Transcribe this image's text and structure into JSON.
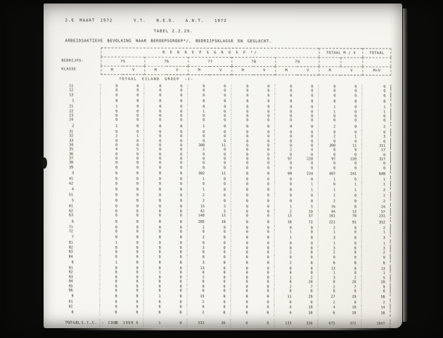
{
  "scan": {
    "header_line": "2.E MAART 1972    V.T.  N.E.D.  A.N.T.  1972",
    "table_number": "TABEL 2.2.29.",
    "title": "ARBEIDSAKTIEVE BEVOLKING NAAR BEROEPSGROEP*/, BEDRIJFSKLASSE EN GESLACHT.",
    "section_header": "TOTAAL EILAND GROEP -1-",
    "footnote": "*/ I.S.I.C. - CODE 1968",
    "colors": {
      "paper": "#f6f5ef",
      "ink": "#4c4a42",
      "background": "#0b0b0a"
    }
  },
  "table": {
    "left_header_line1": "BEDRIJFS-",
    "left_header_line2": "KLASSE",
    "band_title": "B E R O E P S G R O E P  */",
    "totaal_mv_header": "TOTAAL  M / V",
    "totaal_header": "TOTAAL",
    "group_columns": [
      "75",
      "76",
      "77",
      "78",
      "79"
    ],
    "sub_columns": [
      "M",
      "V",
      "M",
      "V",
      "M",
      "V",
      "M",
      "V",
      "M",
      "V",
      "M",
      "V",
      "M+V"
    ],
    "grand_total_label": "TOTAAL",
    "rows": [
      {
        "label": "11",
        "type": "detail",
        "values": [
          0,
          0,
          0,
          0,
          0,
          0,
          0,
          0,
          0,
          0,
          0,
          0,
          0
        ]
      },
      {
        "label": "12",
        "type": "detail",
        "values": [
          0,
          0,
          0,
          0,
          0,
          0,
          0,
          0,
          0,
          0,
          0,
          0,
          0
        ]
      },
      {
        "label": "13",
        "type": "detail",
        "values": [
          0,
          0,
          0,
          0,
          0,
          0,
          0,
          0,
          0,
          0,
          0,
          0,
          0
        ]
      },
      {
        "label": "1",
        "type": "total",
        "values": [
          0,
          0,
          0,
          0,
          0,
          0,
          0,
          0,
          0,
          0,
          0,
          0,
          0
        ]
      },
      {
        "label": "21",
        "type": "detail",
        "values": [
          1,
          0,
          0,
          0,
          0,
          0,
          0,
          0,
          0,
          0,
          1,
          0,
          1
        ]
      },
      {
        "label": "22",
        "type": "detail",
        "values": [
          0,
          0,
          0,
          0,
          1,
          0,
          0,
          0,
          0,
          0,
          1,
          0,
          1
        ]
      },
      {
        "label": "23",
        "type": "detail",
        "values": [
          0,
          0,
          0,
          0,
          0,
          0,
          0,
          0,
          0,
          0,
          0,
          0,
          0
        ]
      },
      {
        "label": "24",
        "type": "detail",
        "values": [
          0,
          0,
          0,
          0,
          0,
          0,
          0,
          0,
          0,
          0,
          0,
          0,
          0
        ]
      },
      {
        "label": "2",
        "type": "total",
        "values": [
          1,
          0,
          0,
          0,
          1,
          0,
          0,
          0,
          0,
          0,
          2,
          0,
          2
        ]
      },
      {
        "label": "31",
        "type": "detail",
        "values": [
          0,
          0,
          0,
          0,
          0,
          0,
          0,
          0,
          0,
          0,
          0,
          0,
          0
        ]
      },
      {
        "label": "32",
        "type": "detail",
        "values": [
          2,
          1,
          0,
          0,
          0,
          0,
          0,
          0,
          0,
          0,
          2,
          1,
          3
        ]
      },
      {
        "label": "33",
        "type": "detail",
        "values": [
          0,
          0,
          0,
          0,
          0,
          0,
          0,
          0,
          0,
          0,
          0,
          0,
          0
        ]
      },
      {
        "label": "34",
        "type": "detail",
        "values": [
          0,
          0,
          0,
          0,
          300,
          11,
          0,
          0,
          0,
          0,
          300,
          11,
          311
        ]
      },
      {
        "label": "35",
        "type": "detail",
        "values": [
          4,
          5,
          0,
          0,
          2,
          0,
          0,
          0,
          2,
          4,
          8,
          9,
          17
        ]
      },
      {
        "label": "36",
        "type": "detail",
        "values": [
          0,
          0,
          0,
          0,
          0,
          0,
          0,
          0,
          0,
          0,
          0,
          0,
          0
        ]
      },
      {
        "label": "37",
        "type": "detail",
        "values": [
          0,
          0,
          0,
          0,
          0,
          0,
          0,
          0,
          97,
          220,
          97,
          220,
          317
        ]
      },
      {
        "label": "38",
        "type": "detail",
        "values": [
          0,
          0,
          0,
          0,
          0,
          0,
          0,
          0,
          0,
          0,
          0,
          0,
          0
        ]
      },
      {
        "label": "39",
        "type": "detail",
        "values": [
          0,
          0,
          0,
          0,
          0,
          0,
          0,
          0,
          0,
          0,
          0,
          0,
          0
        ]
      },
      {
        "label": "3",
        "type": "total",
        "values": [
          6,
          6,
          0,
          0,
          302,
          11,
          0,
          0,
          99,
          224,
          407,
          241,
          648
        ]
      },
      {
        "label": "41",
        "type": "detail",
        "values": [
          0,
          0,
          0,
          0,
          1,
          0,
          0,
          0,
          0,
          0,
          1,
          0,
          1
        ]
      },
      {
        "label": "42",
        "type": "detail",
        "values": [
          0,
          0,
          0,
          0,
          0,
          0,
          0,
          0,
          0,
          1,
          0,
          1,
          1
        ]
      },
      {
        "label": "4",
        "type": "total",
        "values": [
          0,
          0,
          0,
          0,
          1,
          0,
          0,
          0,
          0,
          1,
          1,
          1,
          2
        ]
      },
      {
        "label": "51",
        "type": "detail",
        "values": [
          0,
          0,
          0,
          0,
          2,
          0,
          0,
          0,
          0,
          0,
          2,
          0,
          2
        ]
      },
      {
        "label": "5",
        "type": "total",
        "values": [
          0,
          0,
          0,
          0,
          2,
          0,
          0,
          0,
          0,
          0,
          2,
          0,
          2
        ]
      },
      {
        "label": "61",
        "type": "detail",
        "values": [
          0,
          0,
          0,
          0,
          15,
          3,
          0,
          0,
          1,
          5,
          16,
          8,
          24
        ]
      },
      {
        "label": "62",
        "type": "detail",
        "values": [
          0,
          0,
          0,
          0,
          42,
          3,
          0,
          0,
          2,
          10,
          44,
          13,
          57
        ]
      },
      {
        "label": "63",
        "type": "detail",
        "values": [
          0,
          0,
          0,
          0,
          148,
          13,
          0,
          0,
          13,
          57,
          161,
          70,
          231
        ]
      },
      {
        "label": "6",
        "type": "total",
        "values": [
          0,
          0,
          0,
          0,
          205,
          19,
          0,
          0,
          16,
          72,
          221,
          91,
          312
        ]
      },
      {
        "label": "71",
        "type": "detail",
        "values": [
          0,
          0,
          0,
          0,
          2,
          0,
          0,
          0,
          0,
          0,
          2,
          0,
          2
        ]
      },
      {
        "label": "72",
        "type": "detail",
        "values": [
          0,
          0,
          0,
          0,
          0,
          0,
          0,
          0,
          1,
          0,
          1,
          0,
          1
        ]
      },
      {
        "label": "7",
        "type": "total",
        "values": [
          0,
          0,
          0,
          0,
          2,
          0,
          0,
          0,
          1,
          0,
          3,
          0,
          3
        ]
      },
      {
        "label": "81",
        "type": "detail",
        "values": [
          1,
          0,
          0,
          0,
          0,
          0,
          0,
          0,
          0,
          0,
          1,
          0,
          1
        ]
      },
      {
        "label": "82",
        "type": "detail",
        "values": [
          0,
          0,
          0,
          0,
          3,
          0,
          0,
          0,
          0,
          0,
          3,
          0,
          3
        ]
      },
      {
        "label": "83",
        "type": "detail",
        "values": [
          0,
          0,
          0,
          0,
          0,
          0,
          0,
          0,
          2,
          0,
          2,
          0,
          2
        ]
      },
      {
        "label": "84",
        "type": "detail",
        "values": [
          0,
          0,
          0,
          0,
          0,
          0,
          0,
          0,
          0,
          0,
          0,
          0,
          0
        ]
      },
      {
        "label": "8",
        "type": "total",
        "values": [
          1,
          0,
          0,
          0,
          3,
          0,
          0,
          0,
          2,
          0,
          6,
          0,
          6
        ]
      },
      {
        "label": "91",
        "type": "detail",
        "values": [
          0,
          0,
          0,
          0,
          13,
          0,
          0,
          0,
          0,
          0,
          13,
          0,
          13
        ]
      },
      {
        "label": "92",
        "type": "detail",
        "values": [
          0,
          0,
          1,
          0,
          0,
          0,
          0,
          0,
          0,
          0,
          1,
          0,
          1
        ]
      },
      {
        "label": "93",
        "type": "detail",
        "values": [
          0,
          0,
          0,
          0,
          2,
          0,
          0,
          0,
          1,
          2,
          3,
          2,
          5
        ]
      },
      {
        "label": "94",
        "type": "detail",
        "values": [
          0,
          0,
          0,
          0,
          0,
          0,
          0,
          0,
          8,
          20,
          8,
          20,
          28
        ]
      },
      {
        "label": "95",
        "type": "detail",
        "values": [
          0,
          0,
          0,
          0,
          0,
          0,
          0,
          0,
          2,
          7,
          2,
          7,
          9
        ]
      },
      {
        "label": "96",
        "type": "detail",
        "values": [
          0,
          0,
          0,
          0,
          0,
          0,
          0,
          0,
          0,
          0,
          0,
          0,
          0
        ]
      },
      {
        "label": "9",
        "type": "total",
        "values": [
          0,
          0,
          1,
          0,
          15,
          0,
          0,
          0,
          11,
          29,
          27,
          29,
          56
        ]
      },
      {
        "label": "01",
        "type": "detail",
        "values": [
          0,
          0,
          0,
          0,
          2,
          0,
          0,
          0,
          0,
          0,
          2,
          0,
          2
        ]
      },
      {
        "label": "02",
        "type": "detail",
        "values": [
          0,
          0,
          0,
          0,
          0,
          0,
          0,
          0,
          4,
          10,
          4,
          10,
          14
        ]
      },
      {
        "label": "0",
        "type": "total",
        "values": [
          0,
          0,
          0,
          0,
          2,
          0,
          0,
          0,
          4,
          10,
          6,
          10,
          16
        ]
      },
      {
        "label": "TOTAAL",
        "type": "grand",
        "values": [
          8,
          6,
          1,
          0,
          533,
          30,
          0,
          0,
          133,
          336,
          675,
          372,
          1047
        ]
      }
    ]
  }
}
